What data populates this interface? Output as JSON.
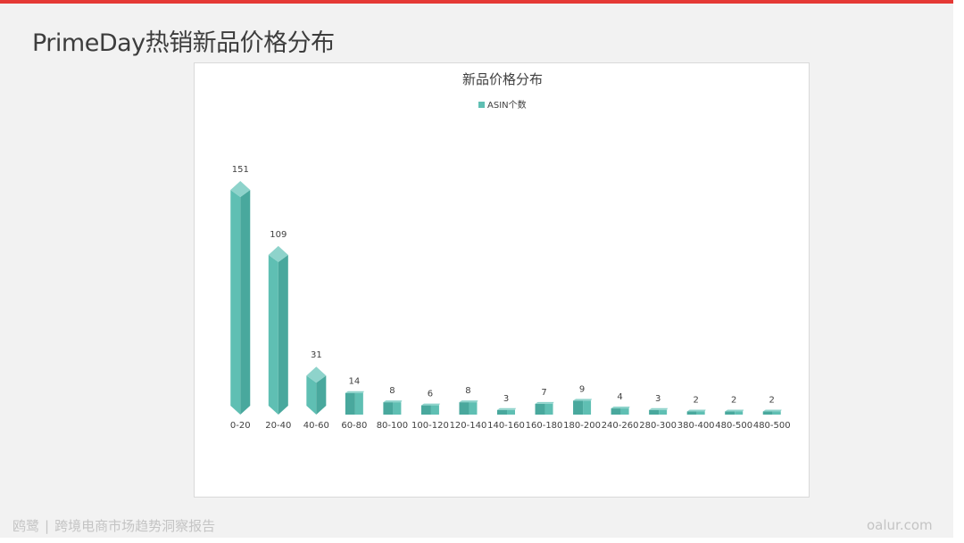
{
  "slide": {
    "title": "PrimeDay热销新品价格分布",
    "footer_brand": "鸥鹭",
    "footer_separator": "|",
    "footer_subtitle": "跨境电商市场趋势洞察报告",
    "footer_site": "oalur.com"
  },
  "colors": {
    "accent_bar": "#e53935",
    "bar_front": "#5fbfb3",
    "bar_side": "#49a89d",
    "bar_top": "#8ed3cb"
  },
  "chart_data": {
    "type": "bar",
    "title": "新品价格分布",
    "legend_position": "top-center",
    "grid": false,
    "categories": [
      "0-20",
      "20-40",
      "40-60",
      "60-80",
      "80-100",
      "100-120",
      "120-140",
      "140-160",
      "160-180",
      "180-200",
      "240-260",
      "280-300",
      "380-400",
      "480-500",
      "480-500"
    ],
    "series": [
      {
        "name": "ASIN个数",
        "values": [
          151,
          109,
          31,
          14,
          8,
          6,
          8,
          3,
          7,
          9,
          4,
          3,
          2,
          2,
          2
        ]
      }
    ],
    "ylim": [
      0,
      151
    ]
  }
}
